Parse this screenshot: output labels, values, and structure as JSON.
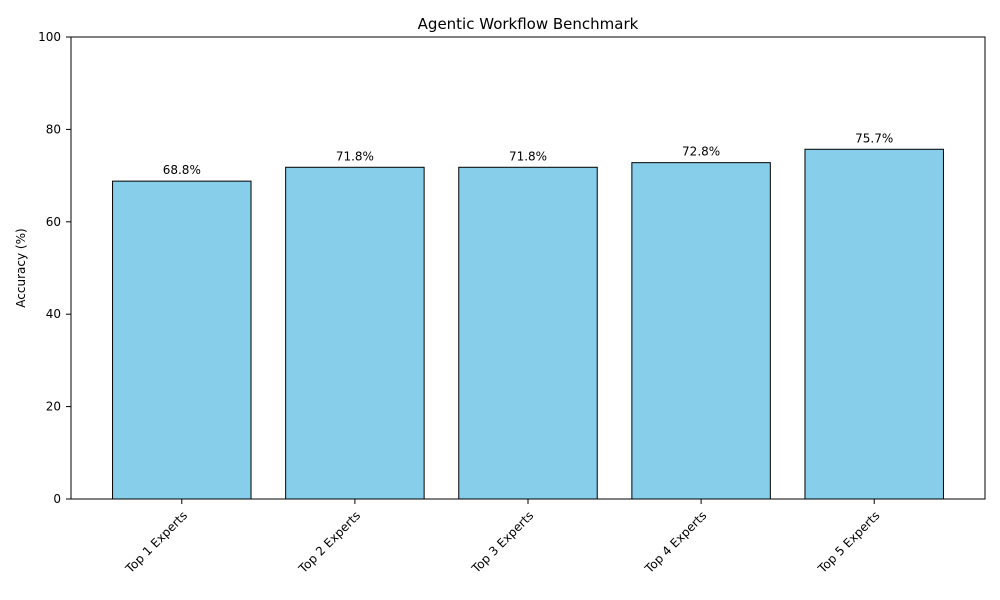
{
  "chart_data": {
    "type": "bar",
    "title": "Agentic Workflow Benchmark",
    "xlabel": "",
    "ylabel": "Accuracy (%)",
    "ylim": [
      0,
      100
    ],
    "yticks": [
      0,
      20,
      40,
      60,
      80,
      100
    ],
    "categories": [
      "Top 1 Experts",
      "Top 2 Experts",
      "Top 3 Experts",
      "Top 4 Experts",
      "Top 5 Experts"
    ],
    "values": [
      68.8,
      71.8,
      71.8,
      72.8,
      75.7
    ],
    "data_labels": [
      "68.8%",
      "71.8%",
      "71.8%",
      "72.8%",
      "75.7%"
    ],
    "bar_color": "#87CEEB",
    "edge_color": "#000000",
    "grid": false,
    "legend": "none"
  }
}
